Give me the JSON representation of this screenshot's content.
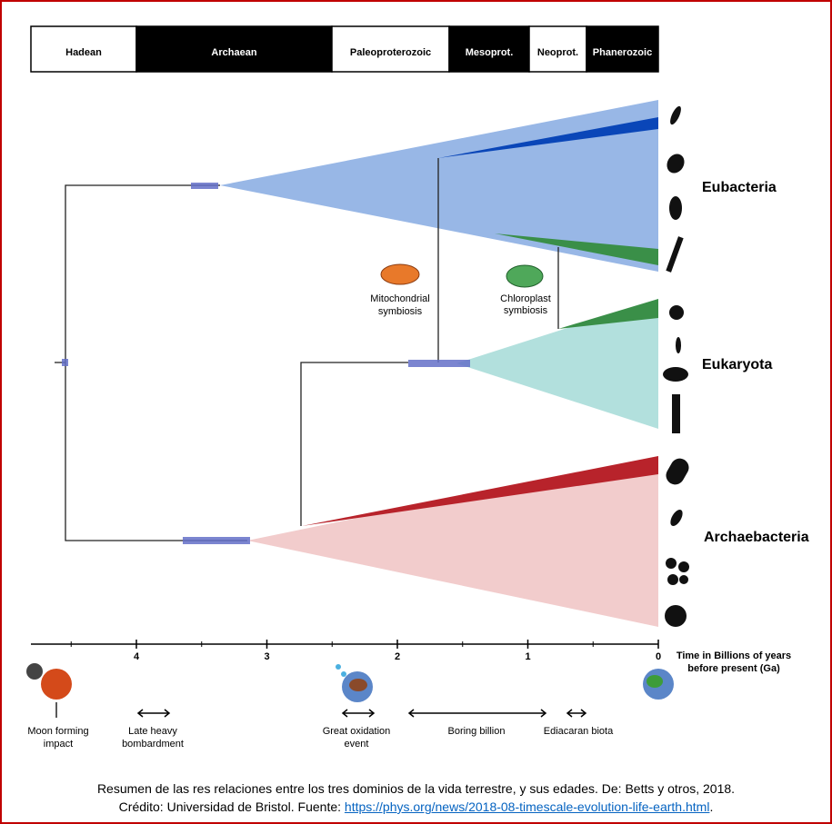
{
  "eons": [
    "Hadean",
    "Archaean",
    "Paleoproterozoic",
    "Mesoprot.",
    "Neoprot.",
    "Phanerozoic"
  ],
  "domains": [
    "Eubacteria",
    "Eukaryota",
    "Archaebacteria"
  ],
  "symbioses": [
    [
      "Mitochondrial",
      "symbiosis"
    ],
    [
      "Chloroplast",
      "symbiosis"
    ]
  ],
  "axis": {
    "ticks": [
      4,
      3,
      2,
      1,
      0
    ],
    "label": [
      "Time in Billions of years",
      "before present (Ga)"
    ]
  },
  "events": [
    [
      "Moon forming",
      "impact"
    ],
    [
      "Late heavy",
      "bombardment"
    ],
    [
      "Great oxidation",
      "event"
    ],
    [
      "Boring billion"
    ],
    [
      "Ediacaran biota"
    ]
  ],
  "caption": {
    "line1": "Resumen de las res relaciones entre los tres dominios de la vida terrestre, y sus edades. De: Betts y otros, 2018.",
    "prefix": "Crédito: Universidad de Bristol. Fuente: ",
    "link": "https://phys.org/news/2018-08-timescale-evolution-life-earth.html",
    "suffix": "."
  }
}
